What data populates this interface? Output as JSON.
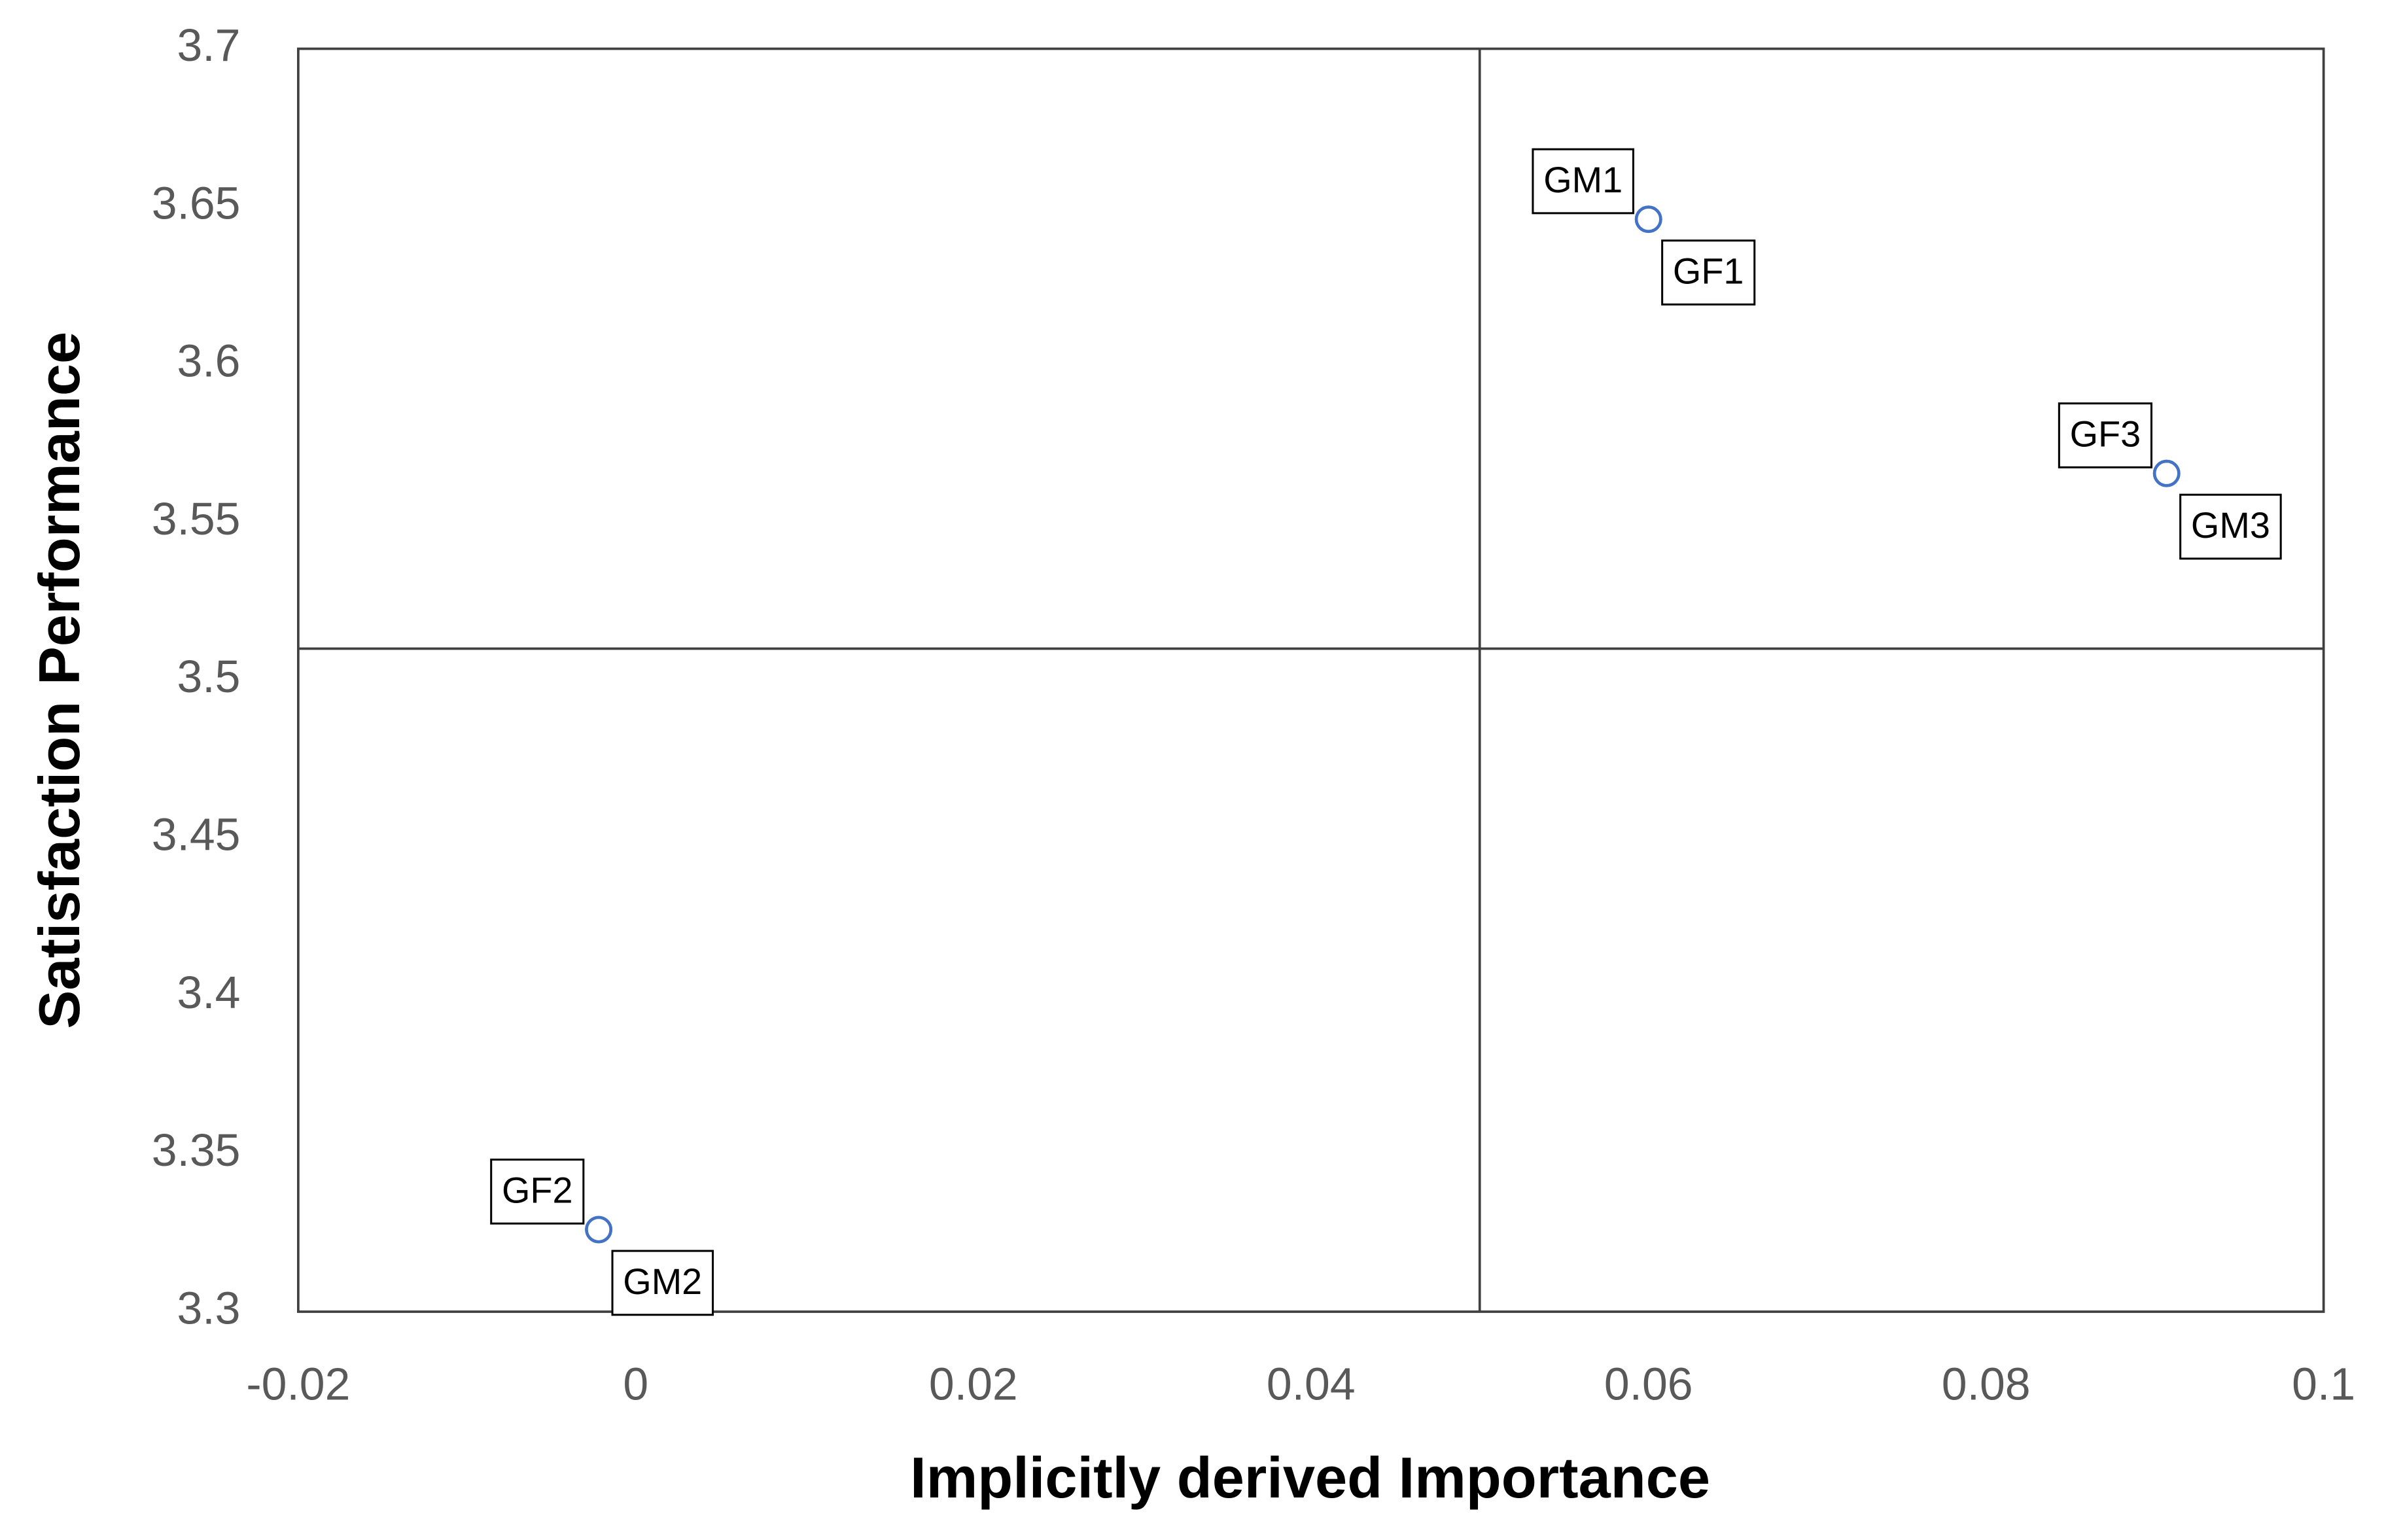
{
  "chart_data": {
    "type": "scatter",
    "x_label": "Implicitly derived Importance",
    "y_label": "Satisfaction Performance",
    "xlim": [
      -0.02,
      0.1
    ],
    "xticks": [
      -0.02,
      0,
      0.02,
      0.04,
      0.06,
      0.08,
      0.1
    ],
    "ylim": [
      3.3,
      3.7
    ],
    "yticks": [
      3.3,
      3.35,
      3.4,
      3.45,
      3.5,
      3.55,
      3.6,
      3.65,
      3.7
    ],
    "quadrant_x": 0.05,
    "quadrant_y": 3.51,
    "color": "#4472c4",
    "points": [
      {
        "name": "GM1",
        "x": 0.06,
        "y": 3.646,
        "label_position": "upper-left"
      },
      {
        "name": "GF1",
        "x": 0.06,
        "y": 3.646,
        "label_position": "lower-right"
      },
      {
        "name": "GF3",
        "x": 0.0907,
        "y": 3.5655,
        "label_position": "upper-left"
      },
      {
        "name": "GM3",
        "x": 0.0907,
        "y": 3.5655,
        "label_position": "lower-right"
      },
      {
        "name": "GF2",
        "x": -0.0022,
        "y": 3.326,
        "label_position": "upper-left"
      },
      {
        "name": "GM2",
        "x": -0.0022,
        "y": 3.326,
        "label_position": "lower-right"
      }
    ]
  }
}
